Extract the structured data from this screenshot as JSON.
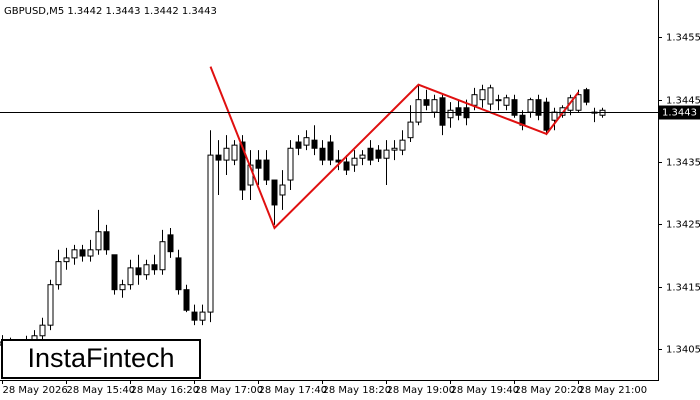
{
  "chart_data": {
    "type": "candlestick",
    "title": "GBPUSD,M5  1.3442 1.3443 1.3442 1.3443",
    "categories": [
      "28 May 2026",
      null,
      null,
      null,
      null,
      null,
      null,
      null,
      "28 May 15:40",
      null,
      null,
      null,
      null,
      null,
      null,
      null,
      "28 May 16:20",
      null,
      null,
      null,
      null,
      null,
      null,
      null,
      "28 May 17:00",
      null,
      null,
      null,
      null,
      null,
      null,
      null,
      "28 May 17:40",
      null,
      null,
      null,
      null,
      null,
      null,
      null,
      "28 May 18:20",
      null,
      null,
      null,
      null,
      null,
      null,
      null,
      "28 May 19:00",
      null,
      null,
      null,
      null,
      null,
      null,
      null,
      "28 May 19:40",
      null,
      null,
      null,
      null,
      null,
      null,
      null,
      "28 May 20:20",
      null,
      null,
      null,
      null,
      null,
      null,
      null,
      "28 May 21:00",
      null,
      null,
      null
    ],
    "open": [
      1.34056,
      1.34061,
      1.34055,
      1.34058,
      1.34064,
      1.34071,
      1.34088,
      1.34153,
      1.3419,
      1.34196,
      1.34209,
      1.34199,
      1.34209,
      1.34238,
      1.34201,
      1.34145,
      1.34153,
      1.3418,
      1.34169,
      1.34185,
      1.34177,
      1.34233,
      1.34196,
      1.34145,
      1.34109,
      1.34096,
      1.34109,
      1.34361,
      1.34353,
      1.34353,
      1.34382,
      1.34313,
      1.34353,
      1.34353,
      1.34321,
      1.34297,
      1.34321,
      1.34382,
      1.34377,
      1.34385,
      1.34372,
      1.34382,
      1.34353,
      1.3435,
      1.34345,
      1.34356,
      1.34372,
      1.34369,
      1.34356,
      1.34369,
      1.34369,
      1.34389,
      1.34414,
      1.3445,
      1.3443,
      1.34453,
      1.34421,
      1.34437,
      1.34437,
      1.34441,
      1.3445,
      1.34443,
      1.3445,
      1.34441,
      1.3445,
      1.34425,
      1.3443,
      1.3445,
      1.34446,
      1.34417,
      1.34425,
      1.34433,
      1.34433,
      1.34466,
      1.3443,
      1.34425
    ],
    "high": [
      1.34072,
      1.34068,
      1.34064,
      1.34071,
      1.3408,
      1.341,
      1.34161,
      1.34209,
      1.34212,
      1.34217,
      1.34217,
      1.34225,
      1.34273,
      1.34249,
      1.34201,
      1.34161,
      1.34193,
      1.34201,
      1.34193,
      1.34201,
      1.34241,
      1.34244,
      1.34209,
      1.34153,
      1.34121,
      1.34121,
      1.34401,
      1.34385,
      1.34393,
      1.34385,
      1.34393,
      1.34369,
      1.34369,
      1.34369,
      1.34321,
      1.34337,
      1.34385,
      1.34393,
      1.34401,
      1.34409,
      1.34385,
      1.34393,
      1.34369,
      1.34361,
      1.34369,
      1.34369,
      1.34385,
      1.34377,
      1.34385,
      1.34385,
      1.34401,
      1.34441,
      1.34474,
      1.34466,
      1.34458,
      1.34458,
      1.34446,
      1.3445,
      1.3445,
      1.34469,
      1.34474,
      1.34474,
      1.34458,
      1.34458,
      1.34458,
      1.34433,
      1.34453,
      1.34458,
      1.34453,
      1.34437,
      1.34441,
      1.34458,
      1.34466,
      1.34469,
      1.34437,
      1.34437
    ],
    "low": [
      1.34045,
      1.34048,
      1.34045,
      1.34048,
      1.34056,
      1.34064,
      1.3408,
      1.34145,
      1.34177,
      1.34185,
      1.3419,
      1.3419,
      1.34201,
      1.34201,
      1.34137,
      1.34132,
      1.34145,
      1.34153,
      1.34161,
      1.34169,
      1.34169,
      1.34196,
      1.34137,
      1.34109,
      1.34088,
      1.34088,
      1.34093,
      1.34297,
      1.34329,
      1.34345,
      1.34289,
      1.34289,
      1.34313,
      1.34313,
      1.34249,
      1.34273,
      1.34305,
      1.34361,
      1.34369,
      1.34361,
      1.34345,
      1.34345,
      1.34337,
      1.34329,
      1.34334,
      1.34345,
      1.34345,
      1.3435,
      1.34313,
      1.34353,
      1.34361,
      1.34382,
      1.34409,
      1.34433,
      1.34421,
      1.34393,
      1.34405,
      1.34417,
      1.34409,
      1.34433,
      1.34437,
      1.34433,
      1.34433,
      1.34433,
      1.34421,
      1.34401,
      1.34421,
      1.34417,
      1.34393,
      1.34401,
      1.34421,
      1.34425,
      1.3443,
      1.34441,
      1.34414,
      1.34421
    ],
    "close": [
      1.34061,
      1.34055,
      1.34058,
      1.34064,
      1.34071,
      1.34088,
      1.34153,
      1.3419,
      1.34196,
      1.34209,
      1.34199,
      1.34209,
      1.34238,
      1.34209,
      1.34145,
      1.34153,
      1.3418,
      1.34169,
      1.34185,
      1.34177,
      1.34222,
      1.34206,
      1.34145,
      1.34112,
      1.34096,
      1.34109,
      1.34361,
      1.34353,
      1.34372,
      1.34377,
      1.34305,
      1.34345,
      1.3434,
      1.34321,
      1.34281,
      1.34313,
      1.34372,
      1.34372,
      1.34389,
      1.34372,
      1.34353,
      1.34353,
      1.3435,
      1.34337,
      1.34356,
      1.34361,
      1.34353,
      1.34356,
      1.34369,
      1.34372,
      1.34385,
      1.34414,
      1.3445,
      1.34441,
      1.3445,
      1.34409,
      1.34433,
      1.34425,
      1.34421,
      1.34458,
      1.34466,
      1.34469,
      1.3445,
      1.34453,
      1.34425,
      1.34409,
      1.3445,
      1.34425,
      1.34401,
      1.3443,
      1.34437,
      1.34453,
      1.34458,
      1.34446,
      1.34429,
      1.34433
    ],
    "up_color": "#ffffff",
    "down_color": "#000000",
    "ylim": [
      1.34,
      1.3461
    ],
    "yticks": [
      1.3405,
      1.3415,
      1.3425,
      1.3435,
      1.3445,
      1.3455
    ],
    "last_price": 1.3443,
    "pattern": {
      "color": "#e01010",
      "x": [
        26,
        34,
        52,
        68,
        72
      ],
      "values": [
        1.34503,
        1.34244,
        1.34474,
        1.34395,
        1.34462
      ]
    },
    "watermark": "InstaFintech"
  }
}
